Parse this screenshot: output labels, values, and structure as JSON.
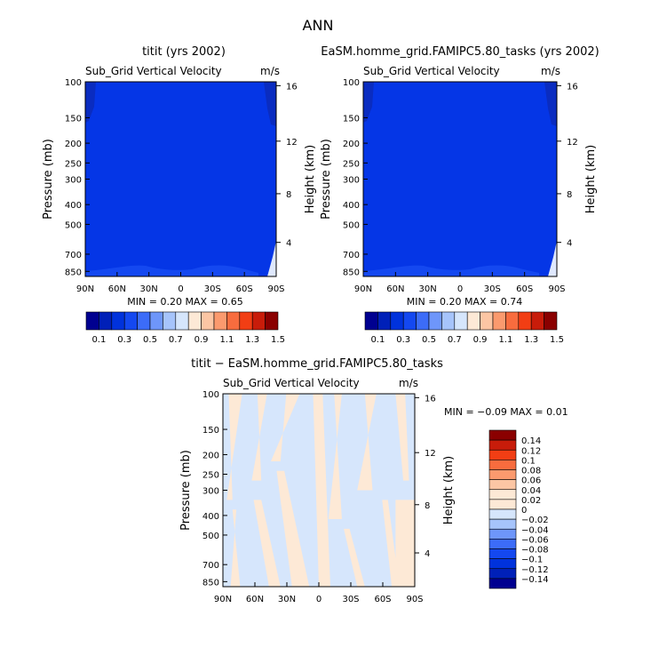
{
  "page": {
    "title": "ANN"
  },
  "chart_data": [
    {
      "type": "heatmap",
      "title": "titit (yrs 2002)",
      "subtitle_left": "Sub_Grid Vertical Velocity",
      "subtitle_right": "m/s",
      "ylabel": "Pressure (mb)",
      "ylabel_right": "Height (km)",
      "x_ticks": [
        "90N",
        "60N",
        "30N",
        "0",
        "30S",
        "60S",
        "90S"
      ],
      "x_range": [
        90,
        -90
      ],
      "y_ticks": [
        "100",
        "150",
        "200",
        "250",
        "300",
        "400",
        "500",
        "700",
        "850"
      ],
      "y_range": [
        100,
        900
      ],
      "y_right_ticks": [
        "16",
        "12",
        "8",
        "4"
      ],
      "stats": "MIN =    0.20    MAX =    0.65",
      "levels": [
        "0.1",
        "0.3",
        "0.5",
        "0.7",
        "0.9",
        "1.1",
        "1.3",
        "1.5"
      ],
      "colors": [
        "#000090",
        "#0020b8",
        "#0032dc",
        "#1448f0",
        "#3c6cf8",
        "#6e96fa",
        "#a6c4fb",
        "#d6e6fc",
        "#fde9d6",
        "#fcc6a4",
        "#fb9a6e",
        "#f86c3e",
        "#f23e14",
        "#c81c0a",
        "#8a0000"
      ]
    },
    {
      "type": "heatmap",
      "title": "EaSM.homme_grid.FAMIPC5.80_tasks (yrs 2002)",
      "subtitle_left": "Sub_Grid Vertical Velocity",
      "subtitle_right": "m/s",
      "ylabel": "Pressure (mb)",
      "ylabel_right": "Height (km)",
      "x_ticks": [
        "90N",
        "60N",
        "30N",
        "0",
        "30S",
        "60S",
        "90S"
      ],
      "x_range": [
        90,
        -90
      ],
      "y_ticks": [
        "100",
        "150",
        "200",
        "250",
        "300",
        "400",
        "500",
        "700",
        "850"
      ],
      "y_range": [
        100,
        900
      ],
      "y_right_ticks": [
        "16",
        "12",
        "8",
        "4"
      ],
      "stats": "MIN =    0.20    MAX =    0.74",
      "levels": [
        "0.1",
        "0.3",
        "0.5",
        "0.7",
        "0.9",
        "1.1",
        "1.3",
        "1.5"
      ],
      "colors": [
        "#000090",
        "#0020b8",
        "#0032dc",
        "#1448f0",
        "#3c6cf8",
        "#6e96fa",
        "#a6c4fb",
        "#d6e6fc",
        "#fde9d6",
        "#fcc6a4",
        "#fb9a6e",
        "#f86c3e",
        "#f23e14",
        "#c81c0a",
        "#8a0000"
      ]
    },
    {
      "type": "heatmap",
      "title": "titit − EaSM.homme_grid.FAMIPC5.80_tasks",
      "subtitle_left": "Sub_Grid Vertical Velocity",
      "subtitle_right": "m/s",
      "ylabel": "Pressure (mb)",
      "ylabel_right": "Height (km)",
      "x_ticks": [
        "90N",
        "60N",
        "30N",
        "0",
        "30S",
        "60S",
        "90S"
      ],
      "x_range": [
        90,
        -90
      ],
      "y_ticks": [
        "100",
        "150",
        "200",
        "250",
        "300",
        "400",
        "500",
        "700",
        "850"
      ],
      "y_range": [
        100,
        900
      ],
      "y_right_ticks": [
        "16",
        "12",
        "8",
        "4"
      ],
      "stats": "MIN =   −0.09   MAX =    0.01",
      "levels": [
        "0.14",
        "0.12",
        "0.1",
        "0.08",
        "0.06",
        "0.04",
        "0.02",
        "0",
        "−0.02",
        "−0.04",
        "−0.06",
        "−0.08",
        "−0.1",
        "−0.12",
        "−0.14"
      ],
      "colors": [
        "#8a0000",
        "#c81c0a",
        "#f23e14",
        "#f86c3e",
        "#fb9a6e",
        "#fcc6a4",
        "#fde9d6",
        "#fde9d6",
        "#d6e6fc",
        "#a6c4fb",
        "#6e96fa",
        "#3c6cf8",
        "#1448f0",
        "#0032dc",
        "#0020b8",
        "#000090"
      ]
    }
  ]
}
